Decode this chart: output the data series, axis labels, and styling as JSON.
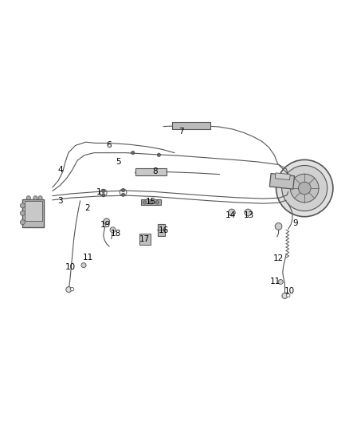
{
  "bg_color": "#ffffff",
  "line_color": "#555555",
  "label_color": "#000000",
  "fig_width": 4.38,
  "fig_height": 5.33,
  "dpi": 100
}
